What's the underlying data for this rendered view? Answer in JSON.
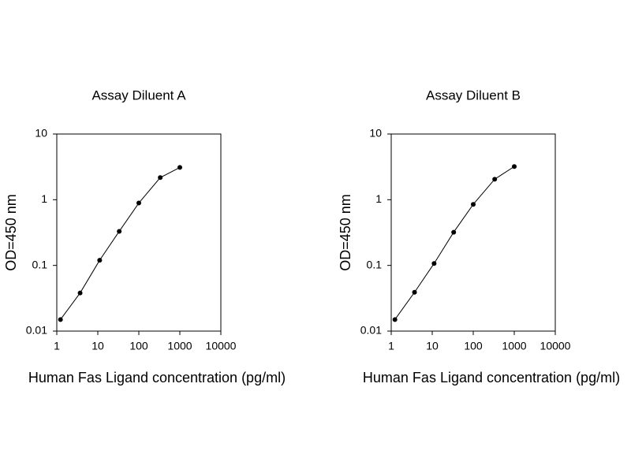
{
  "chart_data": [
    {
      "type": "line",
      "title": "Assay Diluent A",
      "xlabel": "Human Fas Ligand  concentration (pg/ml)",
      "ylabel": "OD=450 nm",
      "x": [
        1.23,
        3.7,
        11.1,
        33.3,
        100,
        333,
        1000
      ],
      "values": [
        0.015,
        0.038,
        0.12,
        0.33,
        0.89,
        2.17,
        3.1
      ],
      "color": "#000000",
      "xscale": "log",
      "yscale": "log",
      "xlim": [
        1,
        10000
      ],
      "ylim": [
        0.01,
        10
      ],
      "xticks": [
        1,
        10,
        100,
        1000,
        10000
      ],
      "yticks": [
        0.01,
        0.1,
        1,
        10
      ]
    },
    {
      "type": "line",
      "title": "Assay Diluent B",
      "xlabel": "Human Fas Ligand  concentration (pg/ml)",
      "ylabel": "OD=450 nm",
      "x": [
        1.23,
        3.7,
        11.1,
        33.3,
        100,
        333,
        1000
      ],
      "values": [
        0.015,
        0.039,
        0.107,
        0.32,
        0.85,
        2.05,
        3.2
      ],
      "color": "#000000",
      "xscale": "log",
      "yscale": "log",
      "xlim": [
        1,
        10000
      ],
      "ylim": [
        0.01,
        10
      ],
      "xticks": [
        1,
        10,
        100,
        1000,
        10000
      ],
      "yticks": [
        0.01,
        0.1,
        1,
        10
      ]
    }
  ]
}
